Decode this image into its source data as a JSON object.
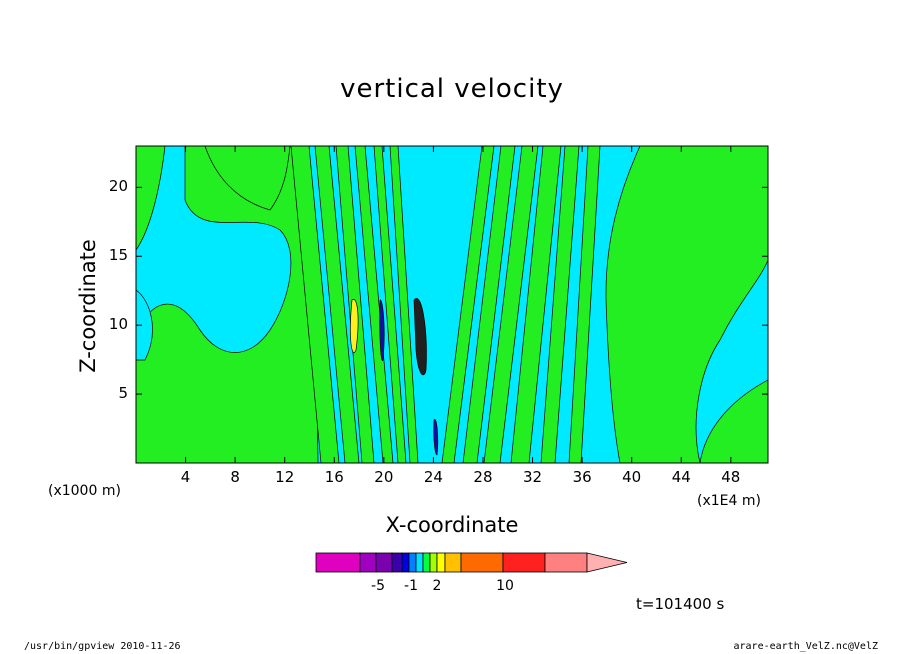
{
  "chart_data": {
    "type": "heatmap",
    "title": "vertical velocity",
    "xlabel": "X-coordinate",
    "ylabel": "Z-coordinate",
    "x_ticks": [
      "4",
      "8",
      "12",
      "16",
      "20",
      "24",
      "28",
      "32",
      "36",
      "40",
      "44",
      "48"
    ],
    "x_tick_values": [
      4,
      8,
      12,
      16,
      20,
      24,
      28,
      32,
      36,
      40,
      44,
      48
    ],
    "y_ticks": [
      "5",
      "10",
      "15",
      "20"
    ],
    "y_tick_values": [
      5,
      10,
      15,
      20
    ],
    "xlim": [
      0,
      51
    ],
    "ylim": [
      0,
      23
    ],
    "x_unit_left": "(x1000 m)",
    "x_unit_right": "(x1E4 m)",
    "colorbar": {
      "labels": [
        "-5",
        "-1",
        "2",
        "10"
      ],
      "colors": [
        "#e000c0",
        "#a000c0",
        "#7a00b0",
        "#3c00a8",
        "#0000e0",
        "#0080ff",
        "#00e0ff",
        "#00ff40",
        "#a0ff00",
        "#ffff00",
        "#ffc000",
        "#ff6a00",
        "#ff2020",
        "#ff8080",
        "#ffb0b0"
      ]
    },
    "field_colors": {
      "background": "#00eaff",
      "positive": "#22ee22",
      "strong_positive": "#ffee22",
      "negative": "#1010a0",
      "contour": "#000000"
    }
  },
  "annotation": {
    "time": "t=101400 s"
  },
  "footer": {
    "left": "/usr/bin/gpview   2010-11-26",
    "right": "arare-earth_VelZ.nc@VelZ"
  }
}
